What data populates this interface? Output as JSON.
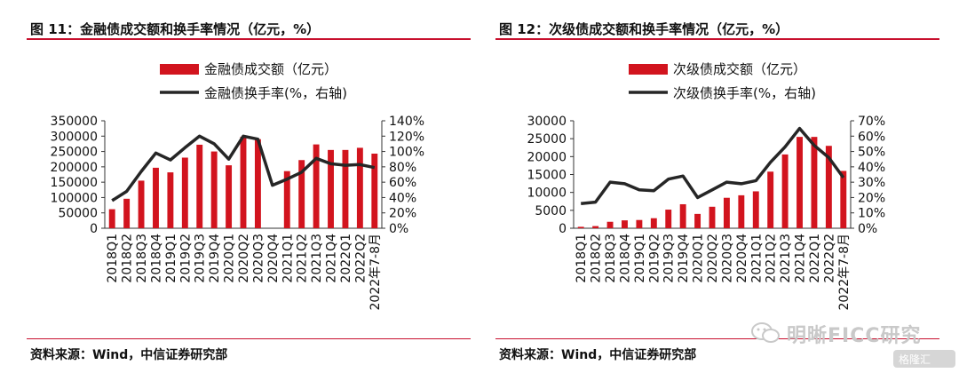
{
  "figures": [
    {
      "title": "图 11：金融债成交额和换手率情况（亿元，%）",
      "source": "资料来源：Wind，中信证券研究部"
    },
    {
      "title": "图 12：次级债成交额和换手率情况（亿元，%）",
      "source": "资料来源：Wind，中信证券研究部"
    }
  ],
  "watermark": {
    "text": "明晰FICC研究",
    "badge": "格隆汇"
  },
  "colors": {
    "bar": "#d2141e",
    "line": "#262626",
    "rule": "#c8102e"
  },
  "chart_data": [
    {
      "type": "bar",
      "categories": [
        "2018Q1",
        "2018Q2",
        "2018Q3",
        "2018Q4",
        "2019Q1",
        "2019Q2",
        "2019Q3",
        "2019Q4",
        "2020Q1",
        "2020Q2",
        "2020Q3",
        "2020Q4",
        "2021Q1",
        "2021Q2",
        "2021Q3",
        "2021Q4",
        "2022Q1",
        "2022Q2",
        "2022年7-8月"
      ],
      "series": [
        {
          "name": "金融债成交额（亿元）",
          "type": "bar",
          "axis": "left",
          "values": [
            62000,
            96000,
            155000,
            197000,
            182000,
            230000,
            272000,
            250000,
            205000,
            298000,
            290000,
            0,
            186000,
            222000,
            273000,
            255000,
            255000,
            262000,
            243000
          ]
        },
        {
          "name": "金融债换手率(%，右轴)",
          "type": "line",
          "axis": "right",
          "values": [
            36,
            48,
            74,
            98,
            89,
            105,
            120,
            110,
            90,
            120,
            116,
            56,
            64,
            73,
            91,
            84,
            82,
            83,
            79
          ]
        }
      ],
      "yleft": {
        "ticks": [
          "0",
          "50000",
          "100000",
          "150000",
          "200000",
          "250000",
          "300000",
          "350000"
        ],
        "lim": [
          0,
          350000
        ]
      },
      "yright": {
        "ticks": [
          "0%",
          "20%",
          "40%",
          "60%",
          "80%",
          "100%",
          "120%",
          "140%"
        ],
        "lim": [
          0,
          140
        ]
      },
      "legend": "top-center",
      "grid": false
    },
    {
      "type": "bar",
      "categories": [
        "2018Q1",
        "2018Q2",
        "2018Q3",
        "2018Q4",
        "2019Q1",
        "2019Q2",
        "2019Q3",
        "2019Q4",
        "2020Q1",
        "2020Q2",
        "2020Q3",
        "2020Q4",
        "2021Q1",
        "2021Q2",
        "2021Q3",
        "2021Q4",
        "2022Q1",
        "2022Q2",
        "2022年7-8月"
      ],
      "series": [
        {
          "name": "次级债成交额（亿元）",
          "type": "bar",
          "axis": "left",
          "values": [
            400,
            600,
            1800,
            2200,
            2300,
            2800,
            5200,
            6700,
            4000,
            6000,
            8500,
            9200,
            10300,
            15800,
            20600,
            25500,
            25500,
            23000,
            16000
          ]
        },
        {
          "name": "次级债换手率(%，右轴)",
          "type": "line",
          "axis": "right",
          "values": [
            16,
            17,
            30,
            29,
            25,
            24.5,
            32,
            34,
            20,
            25,
            30,
            29,
            31,
            43,
            53,
            65,
            54,
            46,
            33
          ]
        }
      ],
      "yleft": {
        "ticks": [
          "0",
          "5000",
          "10000",
          "15000",
          "20000",
          "25000",
          "30000"
        ],
        "lim": [
          0,
          30000
        ]
      },
      "yright": {
        "ticks": [
          "0%",
          "10%",
          "20%",
          "30%",
          "40%",
          "50%",
          "60%",
          "70%"
        ],
        "lim": [
          0,
          70
        ]
      },
      "legend": "top-center",
      "grid": false
    }
  ]
}
